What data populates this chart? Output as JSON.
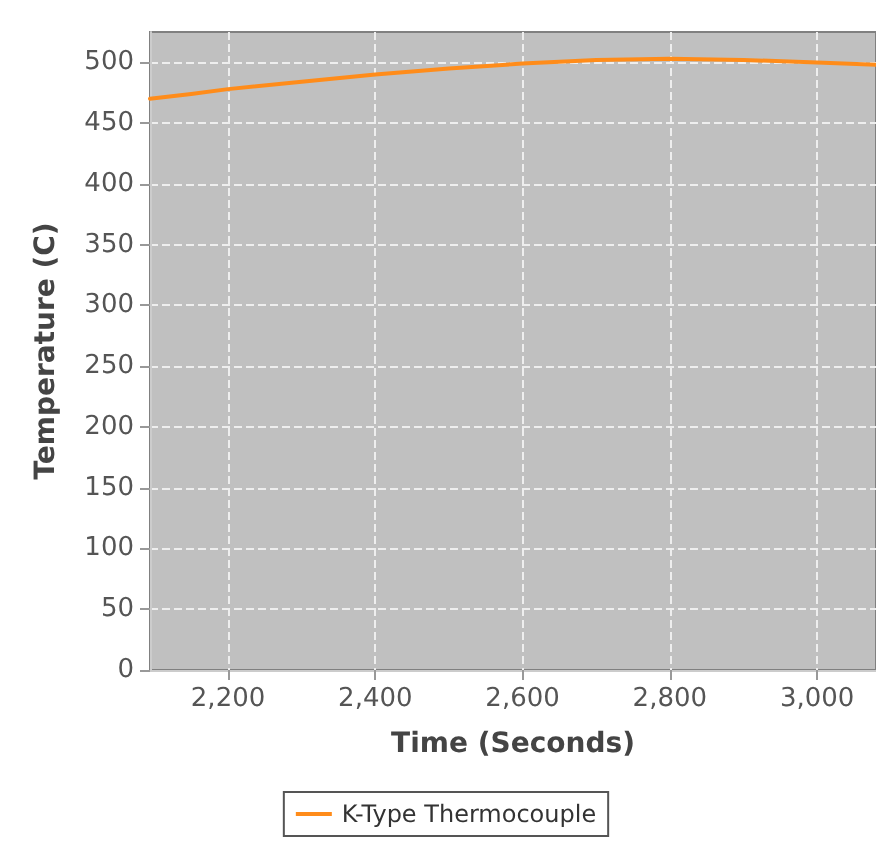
{
  "chart_data": {
    "type": "line",
    "xlabel": "Time (Seconds)",
    "ylabel": "Temperature (C)",
    "x": [
      2094,
      2150,
      2200,
      2300,
      2400,
      2500,
      2600,
      2700,
      2800,
      2900,
      3000,
      3080
    ],
    "series": [
      {
        "name": "K-Type Thermocouple",
        "color": "#ff8c1a",
        "values": [
          470,
          474,
          478,
          484,
          490,
          495,
          499,
          502,
          503,
          502,
          500,
          498
        ]
      }
    ],
    "xlim": [
      2094,
      3080
    ],
    "xticks": [
      {
        "value": 2200,
        "label": "2,200"
      },
      {
        "value": 2400,
        "label": "2,400"
      },
      {
        "value": 2600,
        "label": "2,600"
      },
      {
        "value": 2800,
        "label": "2,800"
      },
      {
        "value": 3000,
        "label": "3,000"
      }
    ],
    "ylim": [
      0,
      525
    ],
    "yticks": [
      0,
      50,
      100,
      150,
      200,
      250,
      300,
      350,
      400,
      450,
      500
    ],
    "grid": true,
    "legend": "bottom",
    "marker": "none",
    "line_style": "solid"
  }
}
